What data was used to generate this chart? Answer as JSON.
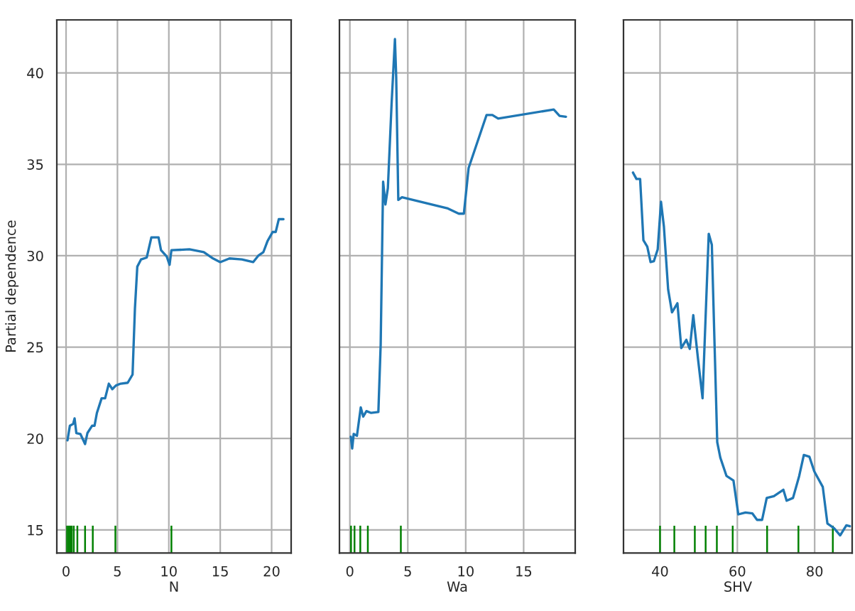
{
  "chart_data": [
    {
      "type": "line",
      "xlabel": "N",
      "ylabel": "Partial dependence",
      "xlim": [
        -0.9,
        21.9
      ],
      "ylim": [
        13.74,
        42.9
      ],
      "xticks": [
        0,
        5,
        10,
        15,
        20
      ],
      "yticks": [
        15,
        20,
        25,
        30,
        35,
        40
      ],
      "grid": true,
      "series": [
        {
          "color": "#1f77b4",
          "x": [
            0.14,
            0.37,
            0.69,
            0.83,
            1.0,
            1.39,
            1.85,
            2.08,
            2.54,
            2.77,
            3.0,
            3.46,
            3.8,
            4.16,
            4.5,
            4.85,
            5.3,
            6.0,
            6.47,
            6.7,
            6.93,
            7.3,
            7.85,
            8.3,
            9.0,
            9.24,
            9.8,
            10.07,
            10.25,
            12.0,
            13.4,
            14.3,
            15.0,
            15.9,
            17.1,
            18.2,
            18.7,
            19.2,
            19.6,
            20.1,
            20.4,
            20.7,
            21.15
          ],
          "values": [
            19.9,
            20.7,
            20.8,
            21.1,
            20.3,
            20.25,
            19.7,
            20.3,
            20.7,
            20.7,
            21.4,
            22.2,
            22.2,
            23.0,
            22.7,
            22.9,
            23.0,
            23.05,
            23.5,
            27.1,
            29.4,
            29.8,
            29.9,
            31.0,
            31.0,
            30.3,
            29.95,
            29.5,
            30.3,
            30.35,
            30.2,
            29.85,
            29.65,
            29.85,
            29.8,
            29.65,
            30.0,
            30.2,
            30.8,
            31.3,
            31.3,
            32.0,
            32.0
          ]
        },
        {
          "type": "bar",
          "color": "#008000",
          "x": [
            0.1,
            0.25,
            0.4,
            0.55,
            0.75,
            1.1,
            1.85,
            2.6,
            4.8,
            10.25
          ],
          "values": [
            15.2,
            15.2,
            15.2,
            15.2,
            15.2,
            15.2,
            15.2,
            15.2,
            15.2,
            15.2
          ]
        }
      ]
    },
    {
      "type": "line",
      "xlabel": "Wa",
      "xlim": [
        -0.9,
        19.45
      ],
      "ylim": [
        13.74,
        42.9
      ],
      "xticks": [
        0,
        5,
        10,
        15
      ],
      "yticks": [
        15,
        20,
        25,
        30,
        35,
        40
      ],
      "grid": true,
      "tick_labels": "x",
      "series": [
        {
          "color": "#1f77b4",
          "x": [
            0.08,
            0.2,
            0.33,
            0.61,
            0.94,
            1.15,
            1.43,
            1.84,
            2.46,
            2.66,
            2.87,
            3.07,
            3.28,
            3.6,
            3.89,
            4.0,
            4.18,
            4.5,
            8.4,
            9.4,
            9.84,
            10.25,
            11.8,
            12.3,
            12.8,
            17.6,
            18.1,
            18.65
          ],
          "values": [
            20.1,
            19.45,
            20.25,
            20.15,
            21.7,
            21.2,
            21.5,
            21.4,
            21.45,
            25.15,
            34.05,
            32.8,
            33.7,
            38.3,
            41.85,
            39.75,
            33.05,
            33.2,
            32.6,
            32.3,
            32.3,
            34.8,
            37.7,
            37.7,
            37.5,
            38.0,
            37.65,
            37.6
          ]
        },
        {
          "type": "bar",
          "color": "#008000",
          "x": [
            0.1,
            0.4,
            0.9,
            1.55,
            4.4
          ],
          "values": [
            15.2,
            15.2,
            15.2,
            15.2,
            15.2
          ]
        }
      ]
    },
    {
      "type": "line",
      "xlabel": "SHV",
      "xlim": [
        30.55,
        89.7
      ],
      "ylim": [
        13.74,
        42.9
      ],
      "xticks": [
        40,
        60,
        80
      ],
      "yticks": [
        15,
        20,
        25,
        30,
        35,
        40
      ],
      "grid": true,
      "tick_labels": "x",
      "series": [
        {
          "color": "#1f77b4",
          "x": [
            33.0,
            33.9,
            34.85,
            35.7,
            36.7,
            37.55,
            38.4,
            39.4,
            40.25,
            41.0,
            42.1,
            43.1,
            44.5,
            45.5,
            46.8,
            47.7,
            48.6,
            49.8,
            51.0,
            52.6,
            53.4,
            54.8,
            55.6,
            57.2,
            59.0,
            60.25,
            62.1,
            63.9,
            65.1,
            66.4,
            67.6,
            69.45,
            71.9,
            72.75,
            74.4,
            76.0,
            77.2,
            78.65,
            79.9,
            82.1,
            83.3,
            85.0,
            86.6,
            88.2,
            89.1
          ],
          "values": [
            34.55,
            34.2,
            34.2,
            30.85,
            30.5,
            29.65,
            29.7,
            30.35,
            32.95,
            31.6,
            28.15,
            26.9,
            27.4,
            24.95,
            25.4,
            24.9,
            26.75,
            24.4,
            22.2,
            31.2,
            30.6,
            19.8,
            18.95,
            17.95,
            17.7,
            15.85,
            15.95,
            15.9,
            15.55,
            15.55,
            16.75,
            16.85,
            17.2,
            16.6,
            16.75,
            17.95,
            19.1,
            19.0,
            18.2,
            17.35,
            15.35,
            15.1,
            14.7,
            15.25,
            15.2
          ]
        },
        {
          "type": "bar",
          "color": "#008000",
          "x": [
            40.0,
            43.7,
            49.0,
            51.8,
            54.7,
            58.8,
            67.7,
            75.8,
            84.7
          ],
          "values": [
            15.2,
            15.2,
            15.2,
            15.2,
            15.2,
            15.2,
            15.2,
            15.2,
            15.2
          ]
        }
      ]
    }
  ]
}
